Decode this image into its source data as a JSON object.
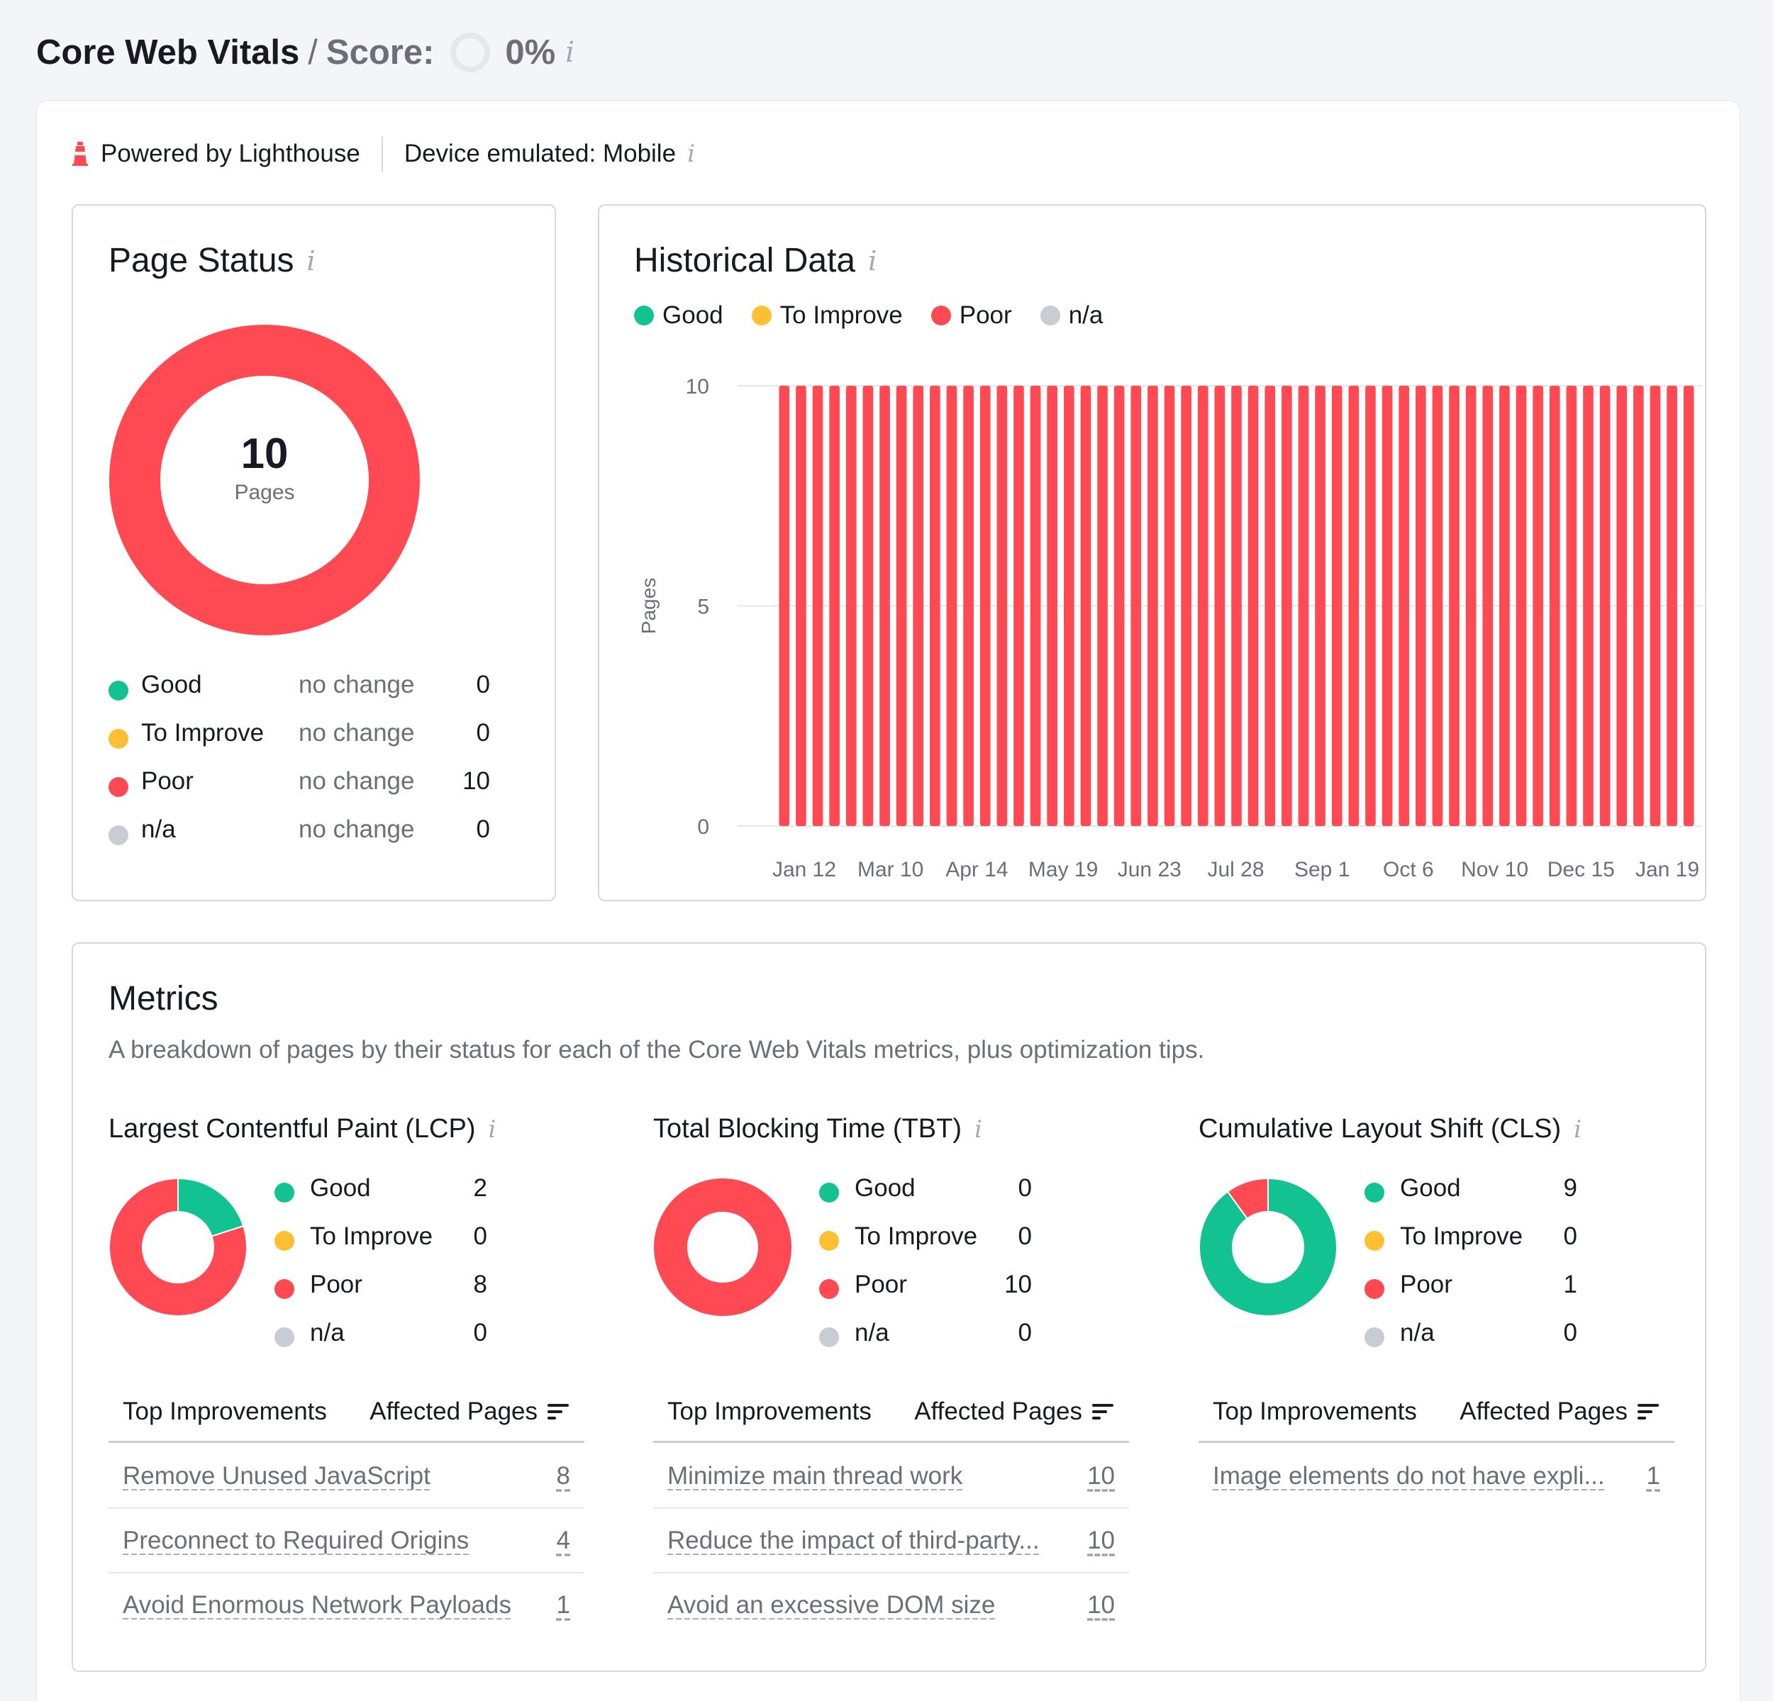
{
  "colors": {
    "good": "#12c291",
    "to_improve": "#ffbf33",
    "poor": "#ff4953",
    "na": "#c9ccd3",
    "text": "#171a22",
    "muted": "#6c6e79",
    "border": "#d6d8de"
  },
  "header": {
    "title": "Core Web Vitals",
    "separator": "/",
    "score_label": "Score:",
    "score_value": "0%",
    "score_fraction": 0,
    "info_icon": "i"
  },
  "meta": {
    "powered_by": "Powered by Lighthouse",
    "device": "Device emulated: Mobile",
    "info_icon": "i"
  },
  "page_status": {
    "title": "Page Status",
    "info_icon": "i",
    "total": "10",
    "total_label": "Pages",
    "rows": [
      {
        "label": "Good",
        "change": "no change",
        "count": "0",
        "value": 0,
        "color": "#12c291"
      },
      {
        "label": "To Improve",
        "change": "no change",
        "count": "0",
        "value": 0,
        "color": "#ffbf33"
      },
      {
        "label": "Poor",
        "change": "no change",
        "count": "10",
        "value": 10,
        "color": "#ff4953"
      },
      {
        "label": "n/a",
        "change": "no change",
        "count": "0",
        "value": 0,
        "color": "#c9ccd3"
      }
    ]
  },
  "historical": {
    "title": "Historical Data",
    "info_icon": "i",
    "legend": [
      {
        "label": "Good",
        "color": "#12c291"
      },
      {
        "label": "To Improve",
        "color": "#ffbf33"
      },
      {
        "label": "Poor",
        "color": "#ff4953"
      },
      {
        "label": "n/a",
        "color": "#c9ccd3"
      }
    ]
  },
  "chart_data": {
    "type": "bar",
    "title": "Historical Data",
    "ylabel": "Pages",
    "xlabel": "",
    "ylim": [
      0,
      10
    ],
    "y_ticks": [
      "0",
      "5",
      "10"
    ],
    "x_tick_labels": [
      "Jan 12",
      "Mar 10",
      "Apr 14",
      "May 19",
      "Jun 23",
      "Jul 28",
      "Sep 1",
      "Oct 6",
      "Nov 10",
      "Dec 15",
      "Jan 19"
    ],
    "bar_count": 55,
    "series": [
      {
        "name": "Poor",
        "color": "#ff4953",
        "values": [
          10,
          10,
          10,
          10,
          10,
          10,
          10,
          10,
          10,
          10,
          10,
          10,
          10,
          10,
          10,
          10,
          10,
          10,
          10,
          10,
          10,
          10,
          10,
          10,
          10,
          10,
          10,
          10,
          10,
          10,
          10,
          10,
          10,
          10,
          10,
          10,
          10,
          10,
          10,
          10,
          10,
          10,
          10,
          10,
          10,
          10,
          10,
          10,
          10,
          10,
          10,
          10,
          10,
          10,
          10
        ]
      }
    ],
    "grid": true
  },
  "metrics": {
    "title": "Metrics",
    "description": "A breakdown of pages by their status for each of the Core Web Vitals metrics, plus optimization tips.",
    "improvements_header": "Top Improvements",
    "affected_header": "Affected Pages",
    "columns": [
      {
        "title": "Largest Contentful Paint (LCP)",
        "rows": [
          {
            "label": "Good",
            "count": "2",
            "value": 2,
            "color": "#12c291"
          },
          {
            "label": "To Improve",
            "count": "0",
            "value": 0,
            "color": "#ffbf33"
          },
          {
            "label": "Poor",
            "count": "8",
            "value": 8,
            "color": "#ff4953"
          },
          {
            "label": "n/a",
            "count": "0",
            "value": 0,
            "color": "#c9ccd3"
          }
        ],
        "improvements": [
          {
            "name": "Remove Unused JavaScript",
            "count": "8"
          },
          {
            "name": "Preconnect to Required Origins",
            "count": "4"
          },
          {
            "name": "Avoid Enormous Network Payloads",
            "count": "1"
          }
        ]
      },
      {
        "title": "Total Blocking Time (TBT)",
        "rows": [
          {
            "label": "Good",
            "count": "0",
            "value": 0,
            "color": "#12c291"
          },
          {
            "label": "To Improve",
            "count": "0",
            "value": 0,
            "color": "#ffbf33"
          },
          {
            "label": "Poor",
            "count": "10",
            "value": 10,
            "color": "#ff4953"
          },
          {
            "label": "n/a",
            "count": "0",
            "value": 0,
            "color": "#c9ccd3"
          }
        ],
        "improvements": [
          {
            "name": "Minimize main thread work",
            "count": "10"
          },
          {
            "name": "Reduce the impact of third-party...",
            "count": "10"
          },
          {
            "name": "Avoid an excessive DOM size",
            "count": "10"
          }
        ]
      },
      {
        "title": "Cumulative Layout Shift (CLS)",
        "rows": [
          {
            "label": "Good",
            "count": "9",
            "value": 9,
            "color": "#12c291"
          },
          {
            "label": "To Improve",
            "count": "0",
            "value": 0,
            "color": "#ffbf33"
          },
          {
            "label": "Poor",
            "count": "1",
            "value": 1,
            "color": "#ff4953"
          },
          {
            "label": "n/a",
            "count": "0",
            "value": 0,
            "color": "#c9ccd3"
          }
        ],
        "improvements": [
          {
            "name": "Image elements do not have expli...",
            "count": "1"
          }
        ]
      }
    ]
  }
}
